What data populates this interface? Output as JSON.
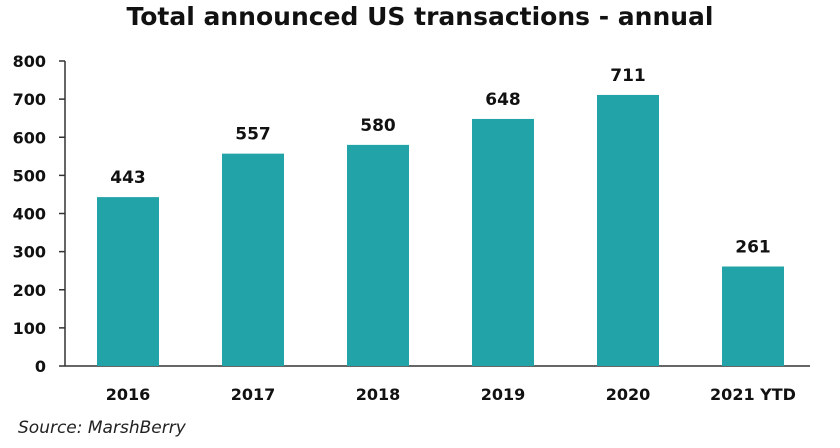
{
  "chart_data": {
    "type": "bar",
    "title": "Total announced US transactions - annual",
    "categories": [
      "2016",
      "2017",
      "2018",
      "2019",
      "2020",
      "2021 YTD"
    ],
    "values": [
      443,
      557,
      580,
      648,
      711,
      261
    ],
    "data_labels": [
      "443",
      "557",
      "580",
      "648",
      "711",
      "261"
    ],
    "xlabel": "",
    "ylabel": "",
    "ylim": [
      0,
      800
    ],
    "yticks": [
      "0",
      "100",
      "200",
      "300",
      "400",
      "500",
      "600",
      "700",
      "800"
    ],
    "grid": false,
    "bar_color": "#22a3a8",
    "source": "Source: MarshBerry"
  }
}
